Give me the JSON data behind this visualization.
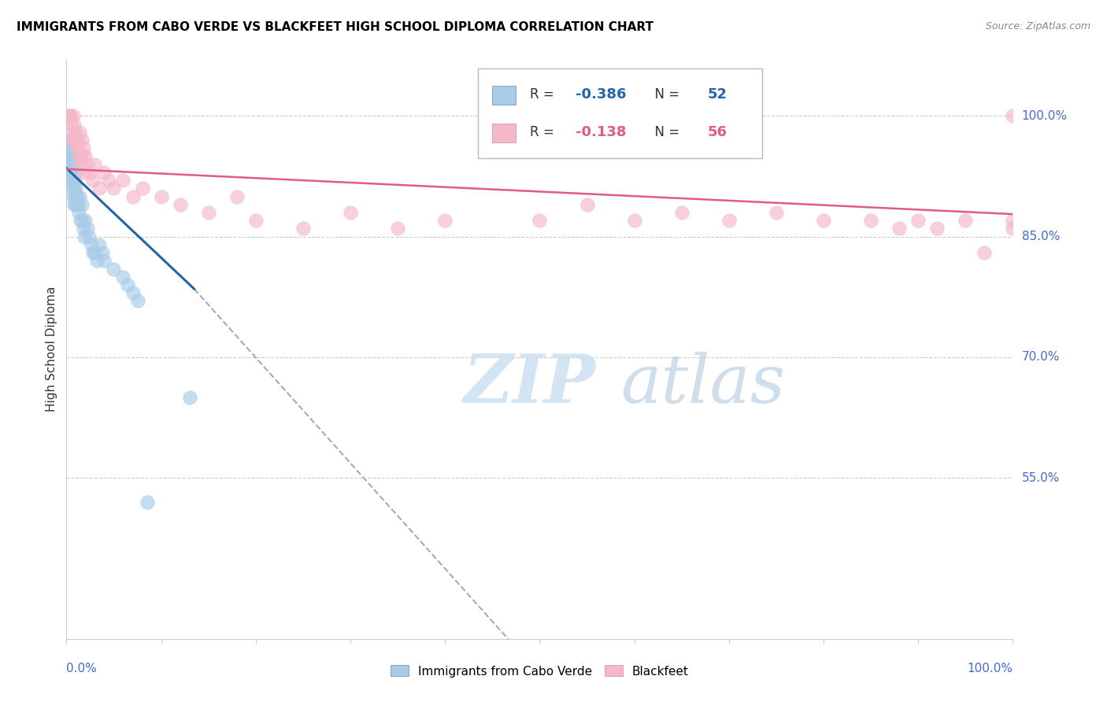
{
  "title": "IMMIGRANTS FROM CABO VERDE VS BLACKFEET HIGH SCHOOL DIPLOMA CORRELATION CHART",
  "source": "Source: ZipAtlas.com",
  "ylabel": "High School Diploma",
  "legend_entry1": {
    "label": "Immigrants from Cabo Verde",
    "R": "-0.386",
    "N": "52",
    "color": "#a8cce8"
  },
  "legend_entry2": {
    "label": "Blackfeet",
    "R": "-0.138",
    "N": "56",
    "color": "#f4b8c8"
  },
  "blue_scatter_x": [
    0.001,
    0.001,
    0.002,
    0.002,
    0.003,
    0.003,
    0.003,
    0.004,
    0.004,
    0.005,
    0.005,
    0.005,
    0.006,
    0.006,
    0.006,
    0.007,
    0.007,
    0.007,
    0.008,
    0.008,
    0.008,
    0.009,
    0.009,
    0.01,
    0.01,
    0.01,
    0.011,
    0.012,
    0.013,
    0.014,
    0.015,
    0.016,
    0.017,
    0.018,
    0.019,
    0.02,
    0.022,
    0.024,
    0.026,
    0.028,
    0.03,
    0.032,
    0.035,
    0.038,
    0.04,
    0.05,
    0.06,
    0.065,
    0.07,
    0.075,
    0.085,
    0.13
  ],
  "blue_scatter_y": [
    0.97,
    0.96,
    0.95,
    0.94,
    0.96,
    0.94,
    0.93,
    0.95,
    0.93,
    0.96,
    0.94,
    0.92,
    0.95,
    0.93,
    0.91,
    0.94,
    0.92,
    0.9,
    0.93,
    0.91,
    0.89,
    0.92,
    0.9,
    0.93,
    0.91,
    0.89,
    0.9,
    0.89,
    0.88,
    0.9,
    0.87,
    0.89,
    0.87,
    0.86,
    0.85,
    0.87,
    0.86,
    0.85,
    0.84,
    0.83,
    0.83,
    0.82,
    0.84,
    0.83,
    0.82,
    0.81,
    0.8,
    0.79,
    0.78,
    0.77,
    0.52,
    0.65
  ],
  "pink_scatter_x": [
    0.002,
    0.003,
    0.004,
    0.005,
    0.006,
    0.007,
    0.007,
    0.008,
    0.009,
    0.01,
    0.011,
    0.012,
    0.013,
    0.014,
    0.015,
    0.016,
    0.017,
    0.018,
    0.019,
    0.02,
    0.022,
    0.025,
    0.028,
    0.03,
    0.035,
    0.04,
    0.045,
    0.05,
    0.06,
    0.07,
    0.08,
    0.1,
    0.12,
    0.15,
    0.18,
    0.2,
    0.25,
    0.3,
    0.35,
    0.4,
    0.5,
    0.55,
    0.6,
    0.65,
    0.7,
    0.75,
    0.8,
    0.85,
    0.88,
    0.9,
    0.92,
    0.95,
    0.97,
    1.0,
    1.0,
    1.0
  ],
  "pink_scatter_y": [
    1.0,
    1.0,
    1.0,
    0.99,
    0.98,
    1.0,
    0.97,
    0.99,
    0.97,
    0.98,
    0.96,
    0.97,
    0.95,
    0.98,
    0.94,
    0.97,
    0.95,
    0.96,
    0.93,
    0.95,
    0.94,
    0.93,
    0.92,
    0.94,
    0.91,
    0.93,
    0.92,
    0.91,
    0.92,
    0.9,
    0.91,
    0.9,
    0.89,
    0.88,
    0.9,
    0.87,
    0.86,
    0.88,
    0.86,
    0.87,
    0.87,
    0.89,
    0.87,
    0.88,
    0.87,
    0.88,
    0.87,
    0.87,
    0.86,
    0.87,
    0.86,
    0.87,
    0.83,
    1.0,
    0.87,
    0.86
  ],
  "blue_line_x": [
    0.0,
    0.135
  ],
  "blue_line_y": [
    0.935,
    0.785
  ],
  "pink_line_x": [
    0.0,
    1.0
  ],
  "pink_line_y": [
    0.934,
    0.878
  ],
  "dashed_line_x": [
    0.135,
    1.0
  ],
  "dashed_line_y": [
    0.785,
    -0.35
  ],
  "watermark_zip": "ZIP",
  "watermark_atlas": "atlas",
  "background_color": "#ffffff",
  "blue_color": "#a8cce8",
  "pink_color": "#f4b8c8",
  "blue_line_color": "#2166ac",
  "pink_line_color": "#e05a8a",
  "axis_color": "#cccccc",
  "grid_color": "#cccccc",
  "right_label_color": "#4169e1",
  "title_color": "#000000",
  "ytick_positions": [
    1.0,
    0.85,
    0.7,
    0.55
  ],
  "ytick_labels": [
    "100.0%",
    "85.0%",
    "70.0%",
    "55.0%"
  ],
  "ylim": [
    0.35,
    1.07
  ],
  "xlim": [
    0.0,
    1.0
  ]
}
